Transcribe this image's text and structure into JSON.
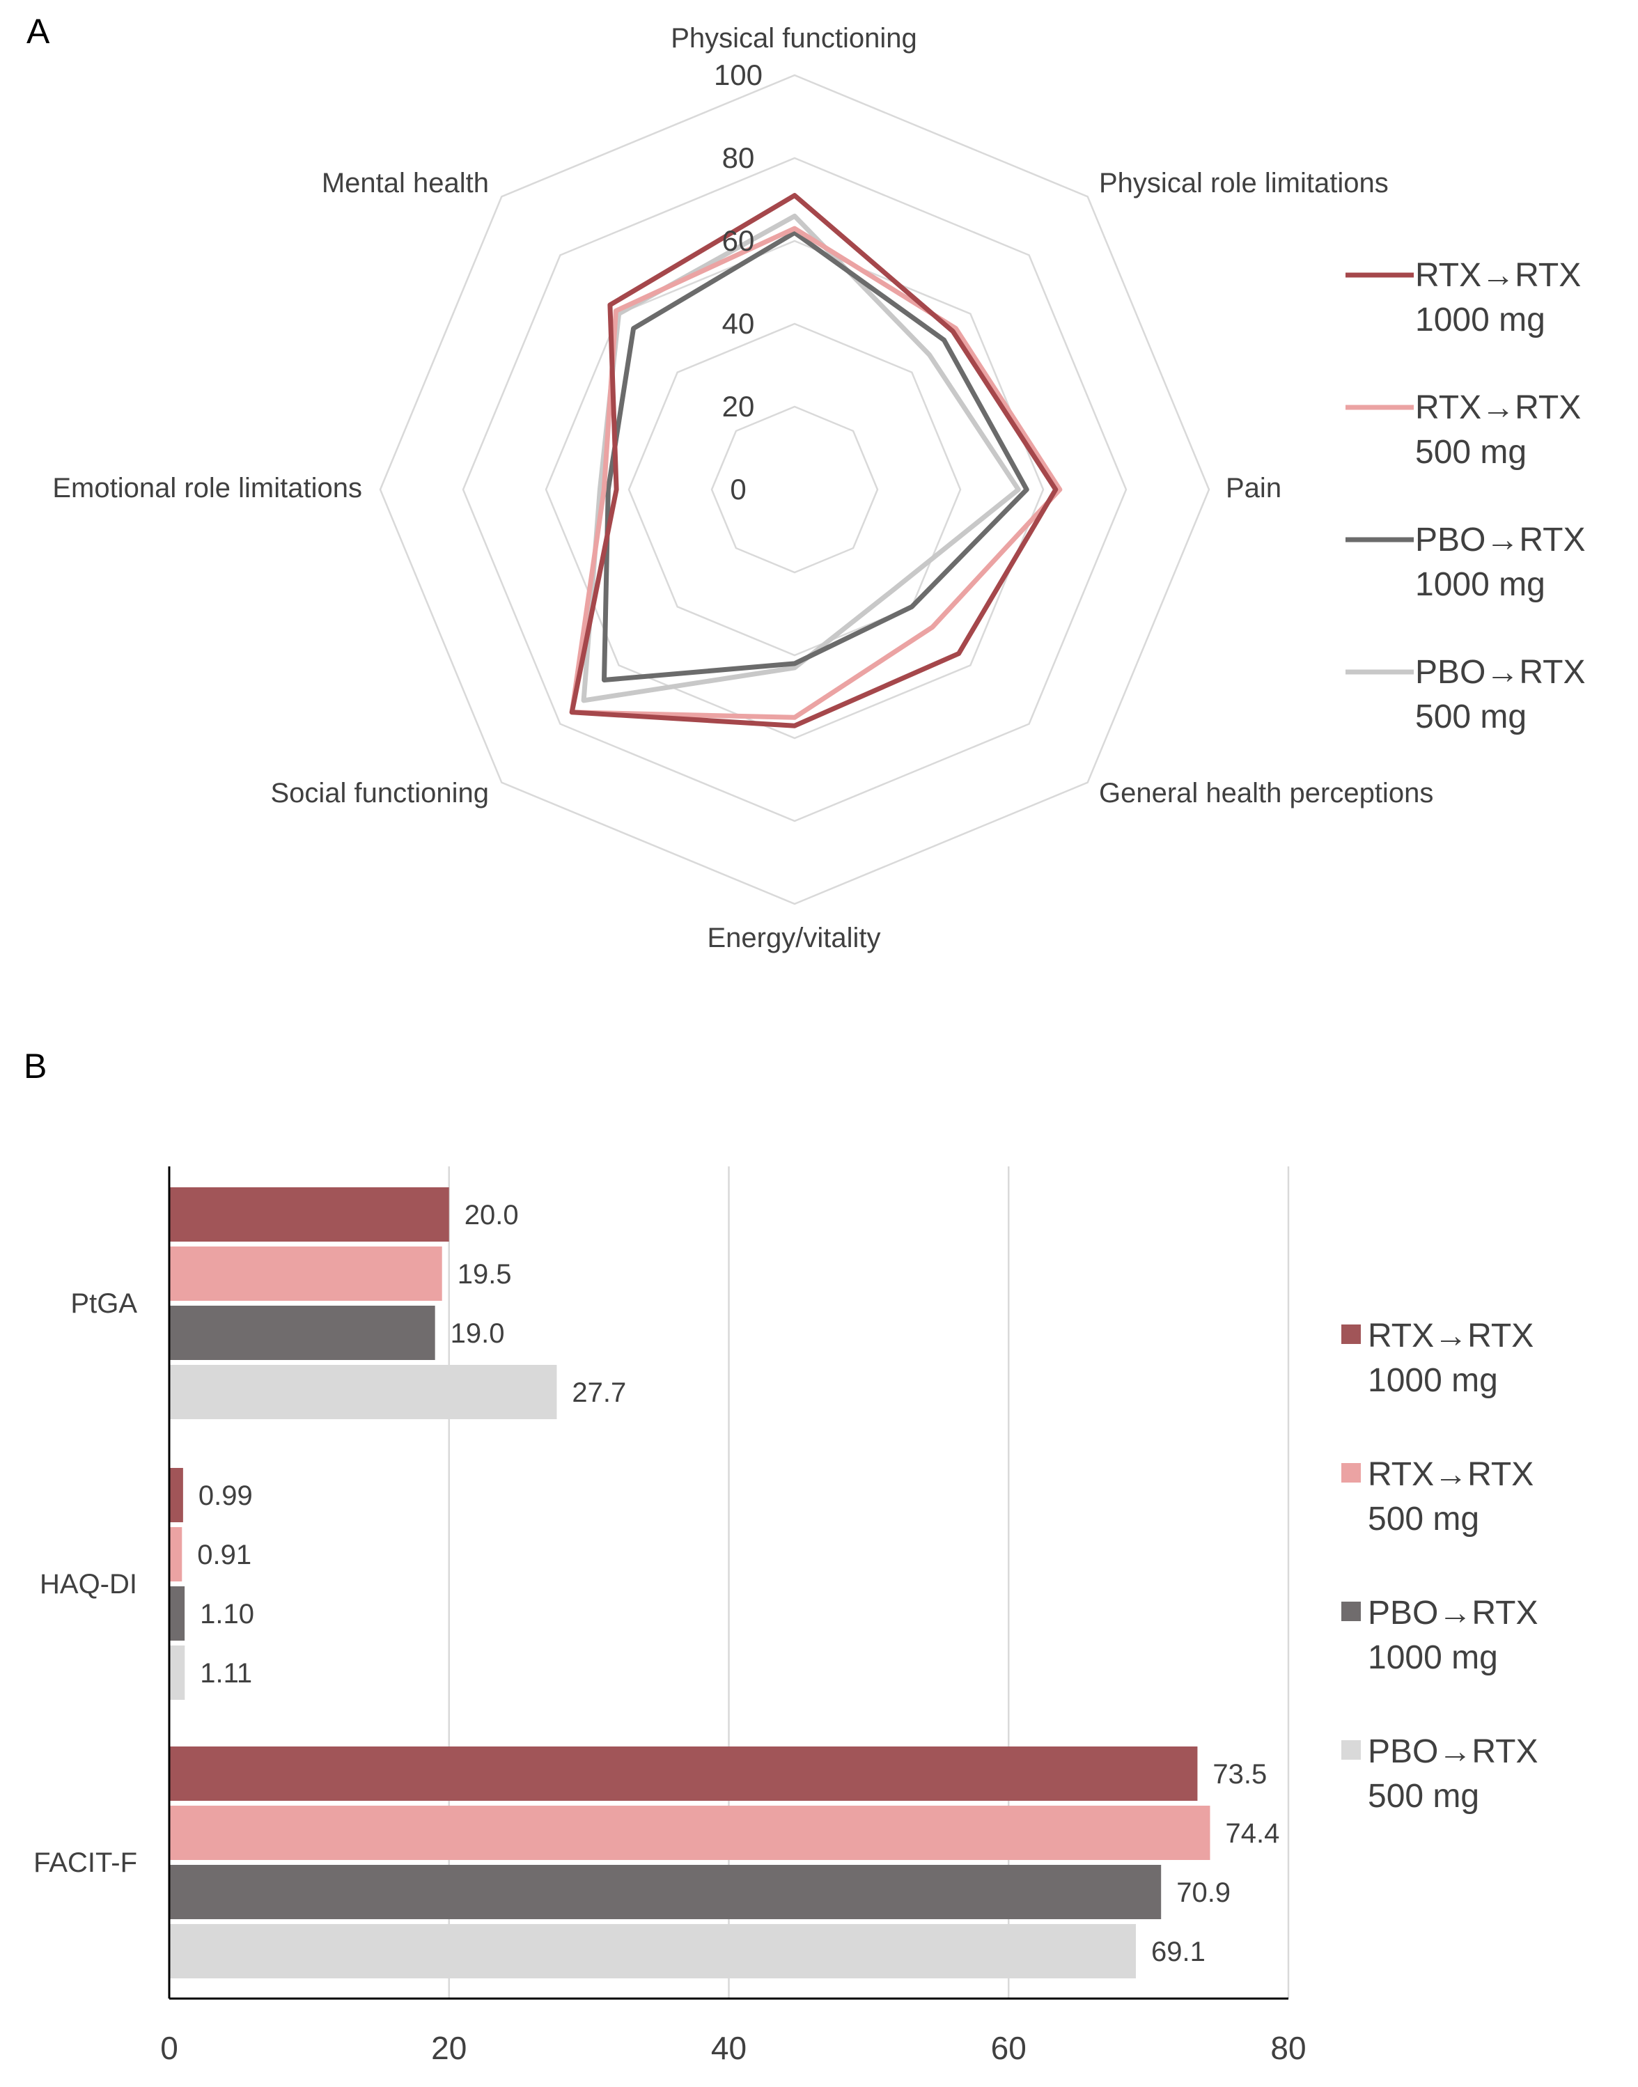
{
  "panels": {
    "a": "A",
    "b": "B"
  },
  "chart_data": [
    {
      "type": "radar",
      "panel": "A",
      "axes": [
        "Physical functioning",
        "Physical role limitations",
        "Pain",
        "General health perceptions",
        "Energy/vitality",
        "Social functioning",
        "Emotional role limitations",
        "Mental health"
      ],
      "ticks": [
        0,
        20,
        40,
        60,
        80,
        100
      ],
      "range": [
        0,
        100
      ],
      "series": [
        {
          "name": "RTX→RTX 1000 mg",
          "line1": "RTX→RTX",
          "line2": "1000 mg",
          "color": "#a5474b",
          "values": [
            71,
            54,
            63,
            56,
            57,
            76,
            43,
            63
          ]
        },
        {
          "name": "RTX→RTX 500 mg",
          "line1": "RTX→RTX",
          "line2": "500 mg",
          "color": "#eba3a3",
          "values": [
            63,
            55,
            64,
            47,
            55,
            76,
            46,
            61
          ]
        },
        {
          "name": "PBO→RTX 1000 mg",
          "line1": "PBO→RTX",
          "line2": "1000 mg",
          "color": "#6b6b6b",
          "values": [
            62,
            51,
            56,
            40,
            42,
            65,
            45,
            55
          ]
        },
        {
          "name": "PBO→RTX 500 mg",
          "line1": "PBO→RTX",
          "line2": "500 mg",
          "color": "#c8c8c8",
          "values": [
            66,
            46,
            54,
            34,
            43,
            72,
            47,
            60
          ]
        }
      ]
    },
    {
      "type": "bar",
      "orientation": "horizontal",
      "panel": "B",
      "categories": [
        "PtGA",
        "HAQ-DI",
        "FACIT-F"
      ],
      "xlim": [
        0,
        80
      ],
      "xticks": [
        0,
        20,
        40,
        60,
        80
      ],
      "series": [
        {
          "name": "RTX→RTX 1000 mg",
          "line1": "RTX→RTX",
          "line2": "1000 mg",
          "color": "#a15558",
          "values": [
            20.0,
            0.99,
            73.5
          ],
          "labels": [
            "20.0",
            "0.99",
            "73.5"
          ]
        },
        {
          "name": "RTX→RTX 500 mg",
          "line1": "RTX→RTX",
          "line2": "500 mg",
          "color": "#eba3a3",
          "values": [
            19.5,
            0.91,
            74.4
          ],
          "labels": [
            "19.5",
            "0.91",
            "74.4"
          ]
        },
        {
          "name": "PBO→RTX 1000 mg",
          "line1": "PBO→RTX",
          "line2": "1000 mg",
          "color": "#706c6d",
          "values": [
            19.0,
            1.1,
            70.9
          ],
          "labels": [
            "19.0",
            "1.10",
            "70.9"
          ]
        },
        {
          "name": "PBO→RTX 500 mg",
          "line1": "PBO→RTX",
          "line2": "500 mg",
          "color": "#d9d9d9",
          "values": [
            27.7,
            1.11,
            69.1
          ],
          "labels": [
            "27.7",
            "1.11",
            "69.1"
          ]
        }
      ]
    }
  ]
}
